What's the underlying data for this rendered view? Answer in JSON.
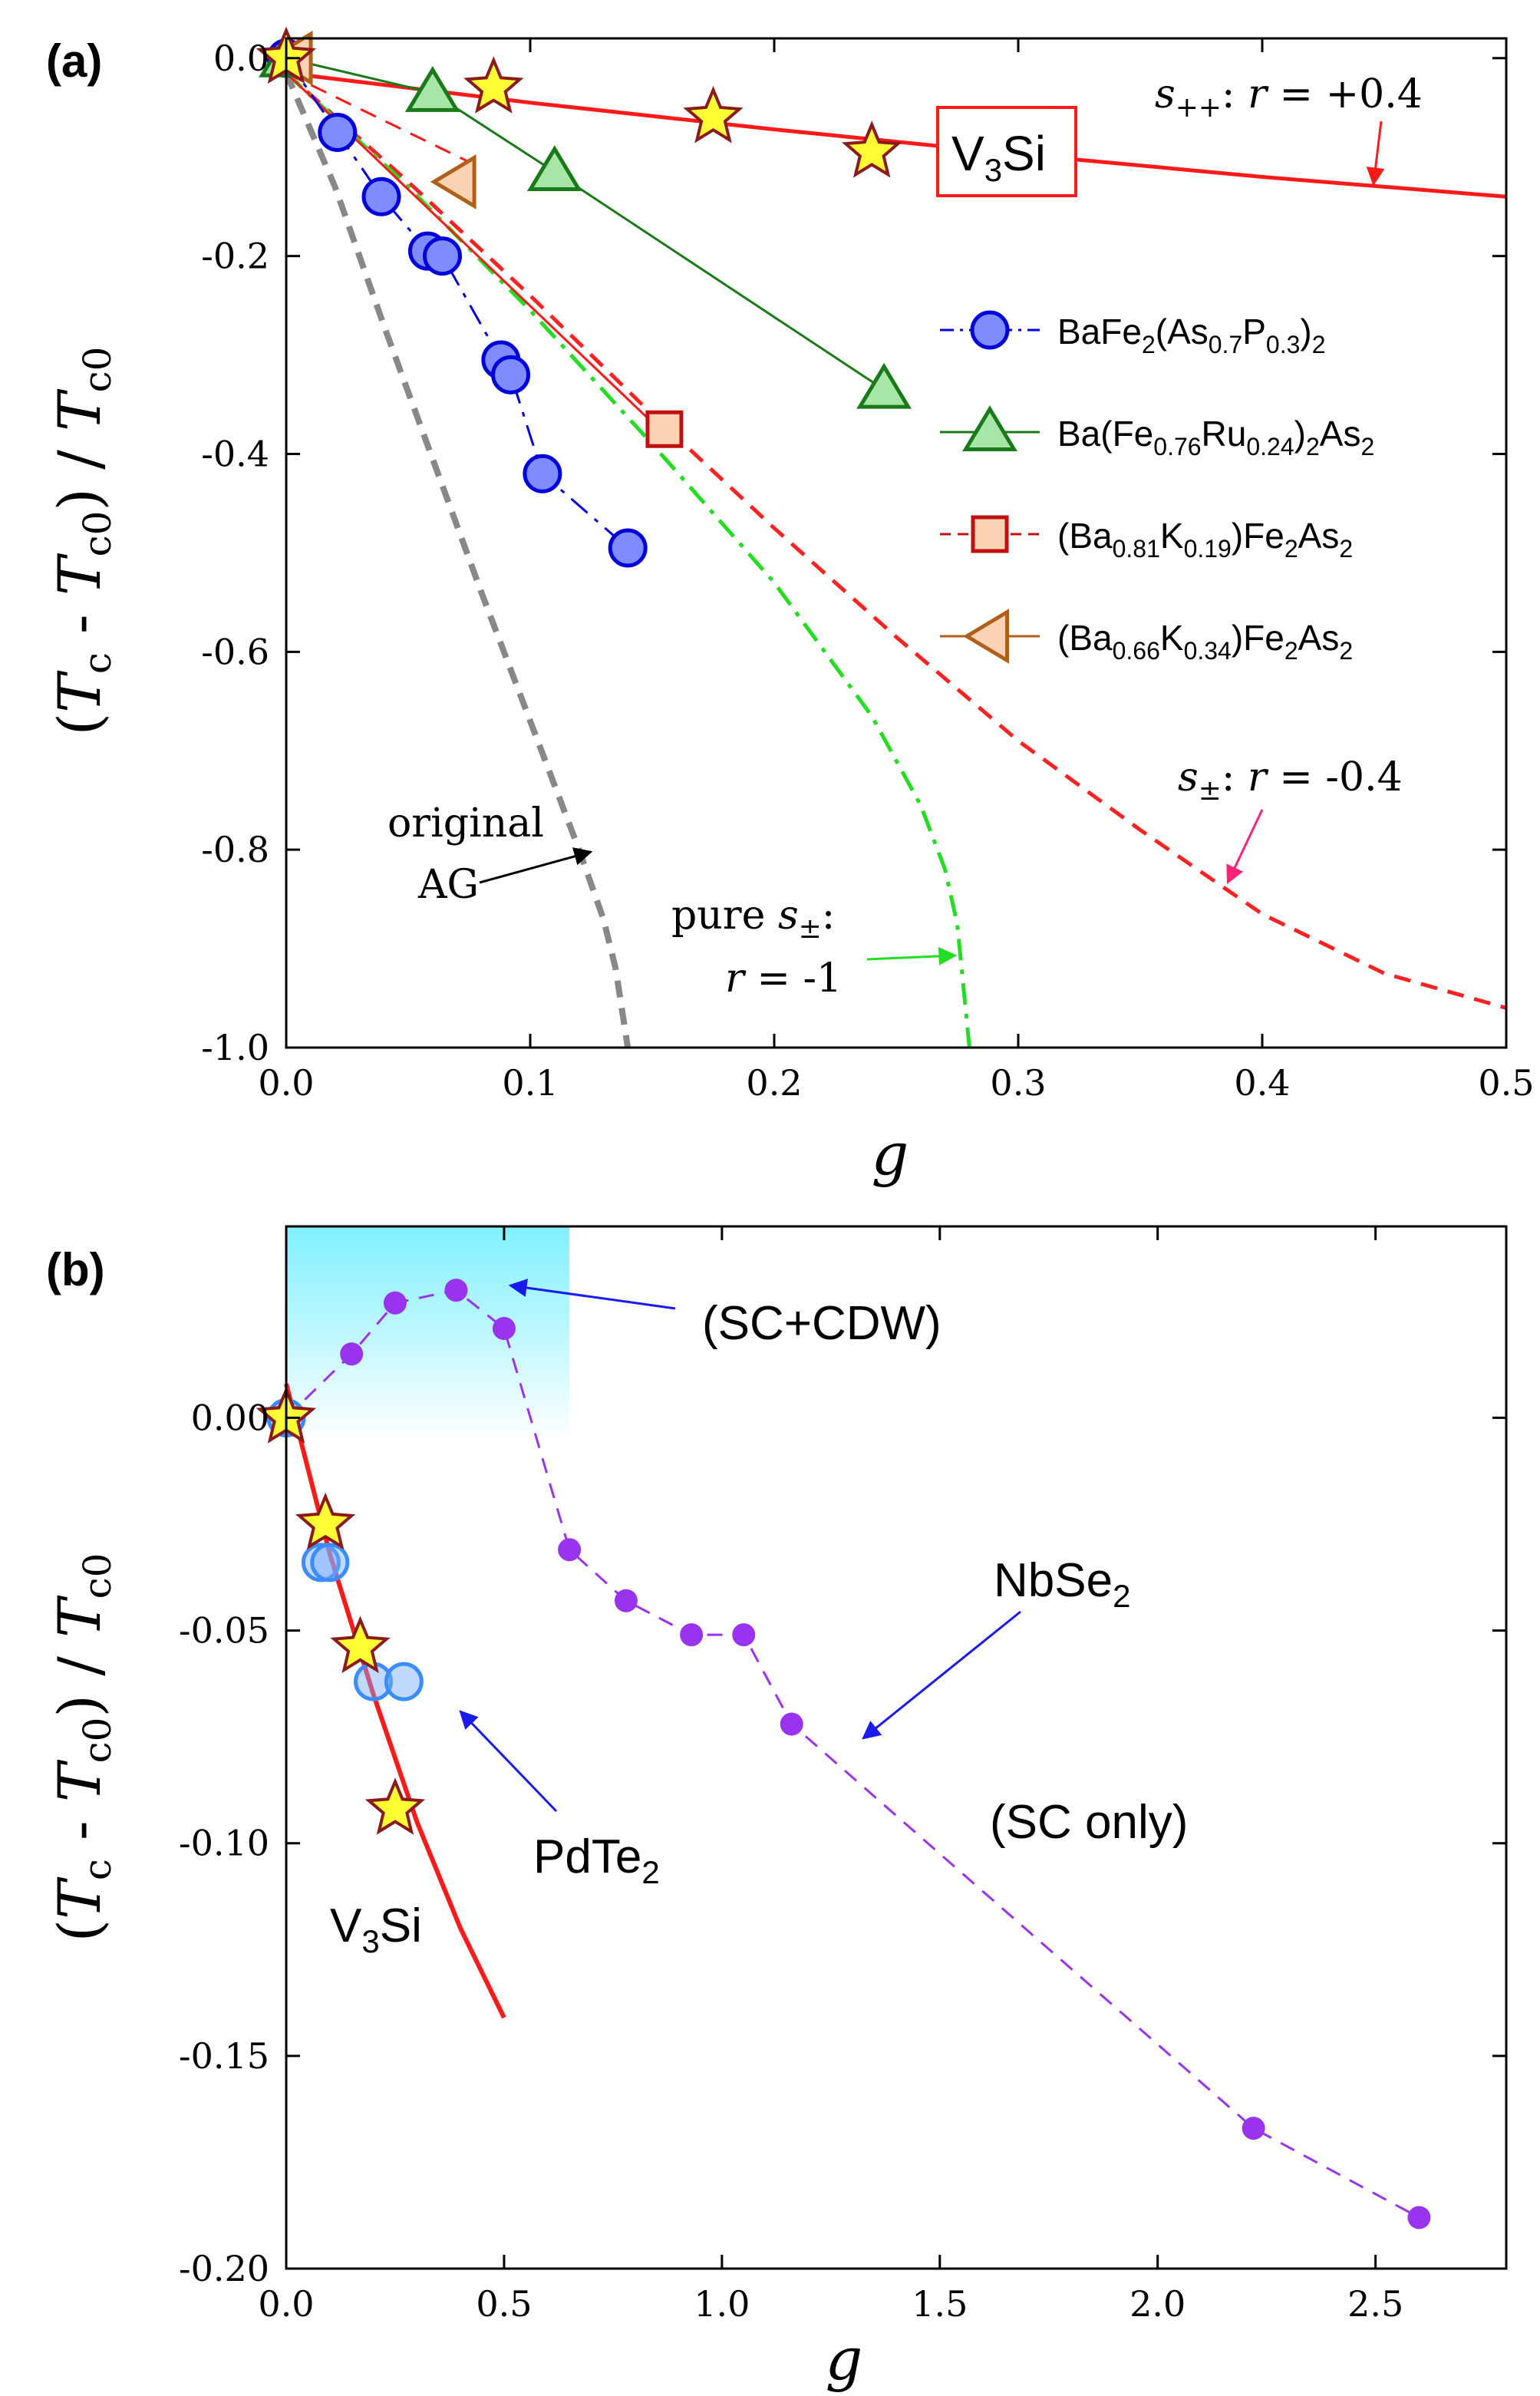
{
  "chart_data": [
    {
      "panel": "(a)",
      "type": "scatter",
      "xlabel": "g",
      "ylabel_parts": [
        "(",
        "T",
        "c",
        " - ",
        "T",
        "c0",
        ") / ",
        "T",
        "c0"
      ],
      "xlim": [
        0.0,
        0.5
      ],
      "ylim": [
        -1.0,
        0.02
      ],
      "xticks": [
        0.0,
        0.1,
        0.2,
        0.3,
        0.4,
        0.5
      ],
      "xtick_labels": [
        "0.0",
        "0.1",
        "0.2",
        "0.3",
        "0.4",
        "0.5"
      ],
      "yticks": [
        0.0,
        -0.2,
        -0.4,
        -0.6,
        -0.8,
        -1.0
      ],
      "ytick_labels": [
        "0.0",
        "-0.2",
        "-0.4",
        "-0.6",
        "-0.8",
        "-1.0"
      ],
      "series": [
        {
          "name": "V3Si",
          "marker": "star",
          "color": "#ffff33",
          "edge": "#8b1a1a",
          "x": [
            0.0,
            0.085,
            0.175,
            0.24
          ],
          "y": [
            0.0,
            -0.03,
            -0.06,
            -0.095
          ]
        },
        {
          "name": "BaFe2(As0.7P0.3)2",
          "marker": "circle",
          "color": "#7f8cff",
          "edge": "#0000dd",
          "line": "dashdot",
          "x": [
            0.0,
            0.021,
            0.039,
            0.058,
            0.064,
            0.088,
            0.092,
            0.105,
            0.14
          ],
          "y": [
            0.0,
            -0.075,
            -0.14,
            -0.195,
            -0.2,
            -0.305,
            -0.32,
            -0.42,
            -0.495
          ]
        },
        {
          "name": "Ba(Fe0.76Ru0.24)2As2",
          "marker": "triangle-up",
          "color": "#a8e6a8",
          "edge": "#1a7a1a",
          "line": "solid",
          "x": [
            0.0,
            0.06,
            0.11,
            0.245
          ],
          "y": [
            0.0,
            -0.035,
            -0.115,
            -0.335
          ]
        },
        {
          "name": "(Ba0.81K0.19)Fe2As2",
          "marker": "square",
          "color": "#f9d3b4",
          "edge": "#c01010",
          "x": [
            0.155
          ],
          "y": [
            -0.375
          ]
        },
        {
          "name": "(Ba0.66K0.34)Fe2As2",
          "marker": "triangle-left",
          "color": "#f9d3b4",
          "edge": "#b0601a",
          "x": [
            0.003,
            0.07
          ],
          "y": [
            0.0,
            -0.125
          ]
        }
      ],
      "curves": [
        {
          "name": "s++: r = +0.4",
          "color": "#ff1a1a",
          "style": "solid",
          "x": [
            0.0,
            0.1,
            0.2,
            0.3,
            0.4,
            0.5
          ],
          "y": [
            -0.015,
            -0.045,
            -0.072,
            -0.097,
            -0.12,
            -0.14
          ]
        },
        {
          "name": "s±: r = -0.4",
          "color": "#ff2222",
          "style": "dashed",
          "x": [
            0.0,
            0.05,
            0.1,
            0.15,
            0.2,
            0.25,
            0.3,
            0.35,
            0.4,
            0.45,
            0.5
          ],
          "y": [
            -0.015,
            -0.125,
            -0.24,
            -0.36,
            -0.475,
            -0.585,
            -0.69,
            -0.78,
            -0.865,
            -0.925,
            -0.96
          ]
        },
        {
          "name": "pure s±: r = -1",
          "color": "#22dd22",
          "style": "dashdot",
          "x": [
            0.0,
            0.05,
            0.1,
            0.15,
            0.2,
            0.24,
            0.26,
            0.27,
            0.275,
            0.28
          ],
          "y": [
            -0.015,
            -0.13,
            -0.255,
            -0.39,
            -0.53,
            -0.665,
            -0.755,
            -0.82,
            -0.875,
            -1.0
          ]
        },
        {
          "name": "original AG",
          "color": "#888888",
          "style": "dashed",
          "x": [
            0.0,
            0.02,
            0.04,
            0.06,
            0.08,
            0.1,
            0.12,
            0.13,
            0.135,
            0.14
          ],
          "y": [
            -0.015,
            -0.13,
            -0.27,
            -0.405,
            -0.54,
            -0.67,
            -0.8,
            -0.87,
            -0.92,
            -1.0
          ]
        },
        {
          "name": "thin red (Ba0.81K0.19) guide",
          "color": "#ff1a1a",
          "style": "solid",
          "x": [
            0.0,
            0.155
          ],
          "y": [
            -0.015,
            -0.38
          ]
        },
        {
          "name": "thin red (Ba0.66K0.34) guide",
          "color": "#ff1a1a",
          "style": "dashed",
          "x": [
            0.0,
            0.075
          ],
          "y": [
            -0.015,
            -0.105
          ]
        }
      ],
      "legend": {
        "position": "right-middle",
        "entries": [
          {
            "marker": "circle",
            "line": "dashdot",
            "color": "#0000dd",
            "fill": "#7f8cff",
            "parts": [
              [
                "BaFe",
                ""
              ],
              [
                "2",
                "sub"
              ],
              [
                "(As",
                ""
              ],
              [
                "0.7",
                "sub"
              ],
              [
                "P",
                ""
              ],
              [
                "0.3",
                "sub"
              ],
              [
                ")",
                ""
              ],
              [
                "2",
                "sub"
              ]
            ]
          },
          {
            "marker": "triangle-up",
            "line": "solid",
            "color": "#1a7a1a",
            "fill": "#a8e6a8",
            "parts": [
              [
                "Ba(Fe",
                ""
              ],
              [
                "0.76",
                "sub"
              ],
              [
                "Ru",
                ""
              ],
              [
                "0.24",
                "sub"
              ],
              [
                ")",
                ""
              ],
              [
                "2",
                "sub"
              ],
              [
                "As",
                ""
              ],
              [
                "2",
                "sub"
              ]
            ]
          },
          {
            "marker": "square",
            "line": "dashed",
            "color": "#c01010",
            "fill": "#f9d3b4",
            "parts": [
              [
                "(Ba",
                ""
              ],
              [
                "0.81",
                "sub"
              ],
              [
                "K",
                ""
              ],
              [
                "0.19",
                "sub"
              ],
              [
                ")Fe",
                ""
              ],
              [
                "2",
                "sub"
              ],
              [
                "As",
                ""
              ],
              [
                "2",
                "sub"
              ]
            ]
          },
          {
            "marker": "triangle-left",
            "line": "solid",
            "color": "#b0601a",
            "fill": "#f9d3b4",
            "parts": [
              [
                "(Ba",
                ""
              ],
              [
                "0.66",
                "sub"
              ],
              [
                "K",
                ""
              ],
              [
                "0.34",
                "sub"
              ],
              [
                ")Fe",
                ""
              ],
              [
                "2",
                "sub"
              ],
              [
                "As",
                ""
              ],
              [
                "2",
                "sub"
              ]
            ]
          }
        ]
      },
      "annotations": {
        "v3si_box": {
          "main": "V",
          "sub": "3",
          "rest": "Si"
        },
        "spp_label": {
          "s": "s",
          "sub": "++",
          "eq": ": ",
          "r": "r",
          "val": " = +0.4"
        },
        "spm_label": {
          "s": "s",
          "sub": "±",
          "eq": ": ",
          "r": "r",
          "val": " = -0.4"
        },
        "pure_label": {
          "line1": "pure ",
          "s": "s",
          "sub": "±",
          "colon": ":",
          "r": "r",
          "val": " = -1"
        },
        "ag_label": {
          "line1": "original",
          "line2": "AG"
        }
      }
    },
    {
      "panel": "(b)",
      "type": "scatter",
      "xlabel": "g",
      "ylabel_parts": [
        "(",
        "T",
        "c",
        " - ",
        "T",
        "c0",
        ") / ",
        "T",
        "c0"
      ],
      "xlim": [
        0.0,
        2.8
      ],
      "ylim": [
        -0.2,
        0.045
      ],
      "xticks": [
        0.0,
        0.5,
        1.0,
        1.5,
        2.0,
        2.5
      ],
      "xtick_labels": [
        "0.0",
        "0.5",
        "1.0",
        "1.5",
        "2.0",
        "2.5"
      ],
      "yticks": [
        0.0,
        -0.05,
        -0.1,
        -0.15,
        -0.2
      ],
      "ytick_labels": [
        "0.00",
        "-0.05",
        "-0.10",
        "-0.15",
        "-0.20"
      ],
      "shaded_region": {
        "x": [
          0.0,
          0.65
        ],
        "label": "(SC+CDW)"
      },
      "series": [
        {
          "name": "NbSe2",
          "marker": "circle-small",
          "color": "#9933ee",
          "line": "dashed",
          "x": [
            0.0,
            0.15,
            0.25,
            0.39,
            0.5,
            0.65,
            0.78,
            0.93,
            1.05,
            1.16,
            2.22,
            2.6
          ],
          "y": [
            0.0,
            0.015,
            0.027,
            0.03,
            0.021,
            -0.031,
            -0.043,
            -0.051,
            -0.051,
            -0.072,
            -0.167,
            -0.188
          ]
        },
        {
          "name": "PdTe2",
          "marker": "circle-open",
          "color": "#3a8cff",
          "x": [
            0.0,
            0.08,
            0.1,
            0.2,
            0.27
          ],
          "y": [
            0.0,
            -0.034,
            -0.034,
            -0.062,
            -0.062
          ]
        },
        {
          "name": "V3Si",
          "marker": "star",
          "color": "#ffff33",
          "edge": "#8b1a1a",
          "x": [
            0.0,
            0.09,
            0.17,
            0.25
          ],
          "y": [
            0.0,
            -0.025,
            -0.054,
            -0.092
          ]
        }
      ],
      "curves": [
        {
          "name": "V3Si fit",
          "color": "#ff1a1a",
          "style": "solid",
          "x": [
            0.0,
            0.1,
            0.2,
            0.3,
            0.4,
            0.5
          ],
          "y": [
            0.008,
            -0.032,
            -0.065,
            -0.095,
            -0.12,
            -0.141
          ]
        }
      ],
      "annotations": {
        "sccdw": "(SC+CDW)",
        "nbse2": {
          "main": "NbSe",
          "sub": "2"
        },
        "sconly": "(SC only)",
        "pdte2": {
          "main": "PdTe",
          "sub": "2"
        },
        "v3si": {
          "main": "V",
          "sub": "3",
          "rest": "Si"
        }
      }
    }
  ]
}
